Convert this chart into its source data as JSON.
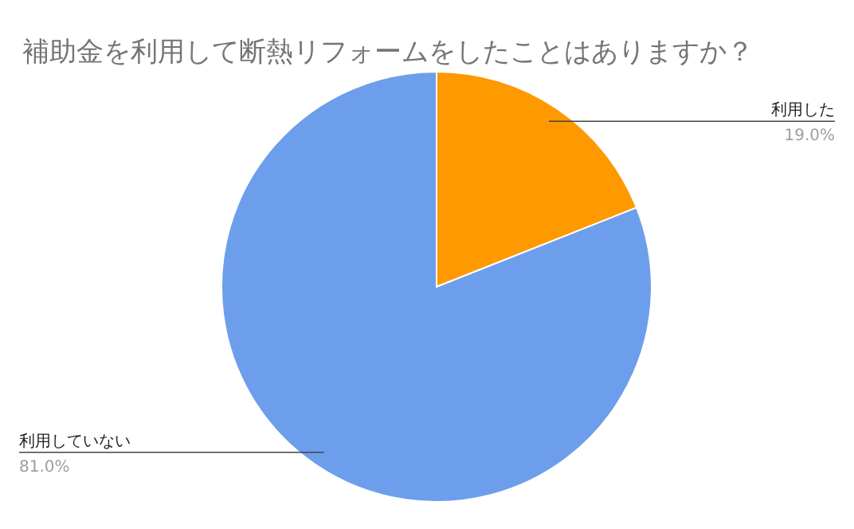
{
  "chart_data": {
    "type": "pie",
    "title": "補助金を利用して断熱リフォームをしたことはありますか？",
    "categories": [
      "利用した",
      "利用していない"
    ],
    "values": [
      19,
      81
    ],
    "colors": [
      "#ff9900",
      "#6d9eeb"
    ],
    "value_labels": [
      "19.0%",
      "81.0%"
    ]
  }
}
